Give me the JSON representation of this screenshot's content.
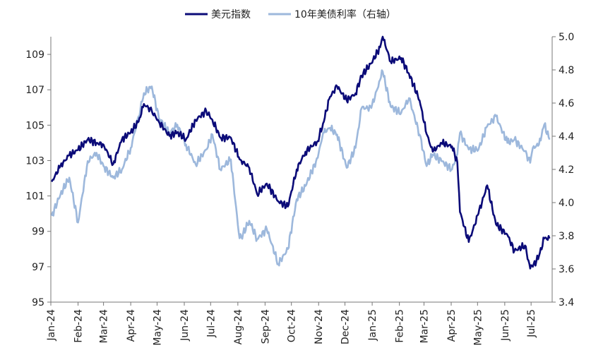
{
  "chart_data": {
    "type": "line",
    "x": [
      "2024-01-02",
      "2024-01-12",
      "2024-01-22",
      "2024-02-01",
      "2024-02-12",
      "2024-02-22",
      "2024-03-01",
      "2024-03-12",
      "2024-03-22",
      "2024-04-01",
      "2024-04-10",
      "2024-04-16",
      "2024-04-25",
      "2024-05-03",
      "2024-05-15",
      "2024-05-24",
      "2024-06-03",
      "2024-06-14",
      "2024-06-26",
      "2024-07-03",
      "2024-07-12",
      "2024-07-24",
      "2024-08-02",
      "2024-08-05",
      "2024-08-14",
      "2024-08-23",
      "2024-09-03",
      "2024-09-16",
      "2024-09-27",
      "2024-10-07",
      "2024-10-17",
      "2024-10-31",
      "2024-11-06",
      "2024-11-14",
      "2024-11-22",
      "2024-12-03",
      "2024-12-13",
      "2024-12-20",
      "2024-12-31",
      "2025-01-10",
      "2025-01-13",
      "2025-01-22",
      "2025-02-03",
      "2025-02-12",
      "2025-02-24",
      "2025-03-04",
      "2025-03-11",
      "2025-03-21",
      "2025-04-02",
      "2025-04-08",
      "2025-04-11",
      "2025-04-21",
      "2025-05-02",
      "2025-05-12",
      "2025-05-22",
      "2025-06-04",
      "2025-06-12",
      "2025-06-24",
      "2025-06-30",
      "2025-07-03",
      "2025-07-10",
      "2025-07-16",
      "2025-07-22"
    ],
    "series": [
      {
        "name": "美元指数",
        "axis": "left",
        "color": "#0b0b78",
        "values": [
          101.8,
          102.7,
          103.3,
          103.6,
          104.2,
          104.0,
          103.9,
          102.8,
          104.2,
          104.6,
          105.2,
          106.2,
          105.8,
          105.2,
          104.4,
          104.6,
          104.2,
          105.3,
          105.8,
          105.3,
          104.3,
          104.3,
          103.2,
          103.0,
          102.6,
          101.1,
          101.7,
          100.7,
          100.4,
          102.5,
          103.5,
          104.1,
          105.1,
          106.6,
          107.2,
          106.4,
          106.8,
          107.8,
          108.5,
          109.4,
          110.0,
          108.6,
          108.8,
          107.9,
          106.4,
          104.5,
          103.5,
          104.0,
          103.8,
          102.9,
          100.1,
          98.4,
          100.0,
          101.6,
          99.4,
          98.8,
          97.9,
          98.2,
          96.9,
          97.0,
          97.6,
          98.6,
          98.6
        ]
      },
      {
        "name": "10年美债利率（右轴）",
        "axis": "right",
        "color": "#9db8dc",
        "values": [
          3.92,
          4.05,
          4.15,
          3.88,
          4.25,
          4.3,
          4.22,
          4.15,
          4.2,
          4.33,
          4.52,
          4.66,
          4.7,
          4.51,
          4.42,
          4.47,
          4.35,
          4.23,
          4.32,
          4.41,
          4.2,
          4.26,
          3.82,
          3.79,
          3.89,
          3.78,
          3.84,
          3.63,
          3.72,
          4.02,
          4.1,
          4.27,
          4.42,
          4.45,
          4.41,
          4.21,
          4.33,
          4.57,
          4.57,
          4.74,
          4.79,
          4.58,
          4.54,
          4.63,
          4.41,
          4.22,
          4.29,
          4.25,
          4.2,
          4.29,
          4.42,
          4.32,
          4.32,
          4.46,
          4.52,
          4.36,
          4.38,
          4.31,
          4.24,
          4.33,
          4.35,
          4.47,
          4.38
        ]
      }
    ],
    "y_left": {
      "ylim": [
        95,
        110
      ],
      "ticks": [
        "95",
        "97",
        "99",
        "101",
        "103",
        "105",
        "107",
        "109"
      ],
      "tick_values": [
        95,
        97,
        99,
        101,
        103,
        105,
        107,
        109
      ]
    },
    "y_right": {
      "ylim": [
        3.4,
        5.0
      ],
      "ticks": [
        "3.4",
        "3.6",
        "3.8",
        "4.0",
        "4.2",
        "4.4",
        "4.6",
        "4.8",
        "5.0"
      ],
      "tick_values": [
        3.4,
        3.6,
        3.8,
        4.0,
        4.2,
        4.4,
        4.6,
        4.8,
        5.0
      ]
    },
    "x_ticks": [
      {
        "date": "2024-01-01",
        "label": "Jan-24"
      },
      {
        "date": "2024-02-01",
        "label": "Feb-24"
      },
      {
        "date": "2024-03-01",
        "label": "Mar-24"
      },
      {
        "date": "2024-04-01",
        "label": "Apr-24"
      },
      {
        "date": "2024-05-01",
        "label": "May-24"
      },
      {
        "date": "2024-06-01",
        "label": "Jun-24"
      },
      {
        "date": "2024-07-01",
        "label": "Jul-24"
      },
      {
        "date": "2024-08-01",
        "label": "Aug-24"
      },
      {
        "date": "2024-09-01",
        "label": "Sep-24"
      },
      {
        "date": "2024-10-01",
        "label": "Oct-24"
      },
      {
        "date": "2024-11-01",
        "label": "Nov-24"
      },
      {
        "date": "2024-12-01",
        "label": "Dec-24"
      },
      {
        "date": "2025-01-01",
        "label": "Jan-25"
      },
      {
        "date": "2025-02-01",
        "label": "Feb-25"
      },
      {
        "date": "2025-03-01",
        "label": "Mar-25"
      },
      {
        "date": "2025-04-01",
        "label": "Apr-25"
      },
      {
        "date": "2025-05-01",
        "label": "May-25"
      },
      {
        "date": "2025-06-01",
        "label": "Jun-25"
      },
      {
        "date": "2025-07-01",
        "label": "Jul-25"
      }
    ],
    "x_range": [
      "2024-01-01",
      "2025-07-25"
    ],
    "legend": {
      "position": "top-center",
      "entries": [
        "美元指数",
        "10年美债利率（右轴）"
      ]
    },
    "grid": false
  }
}
